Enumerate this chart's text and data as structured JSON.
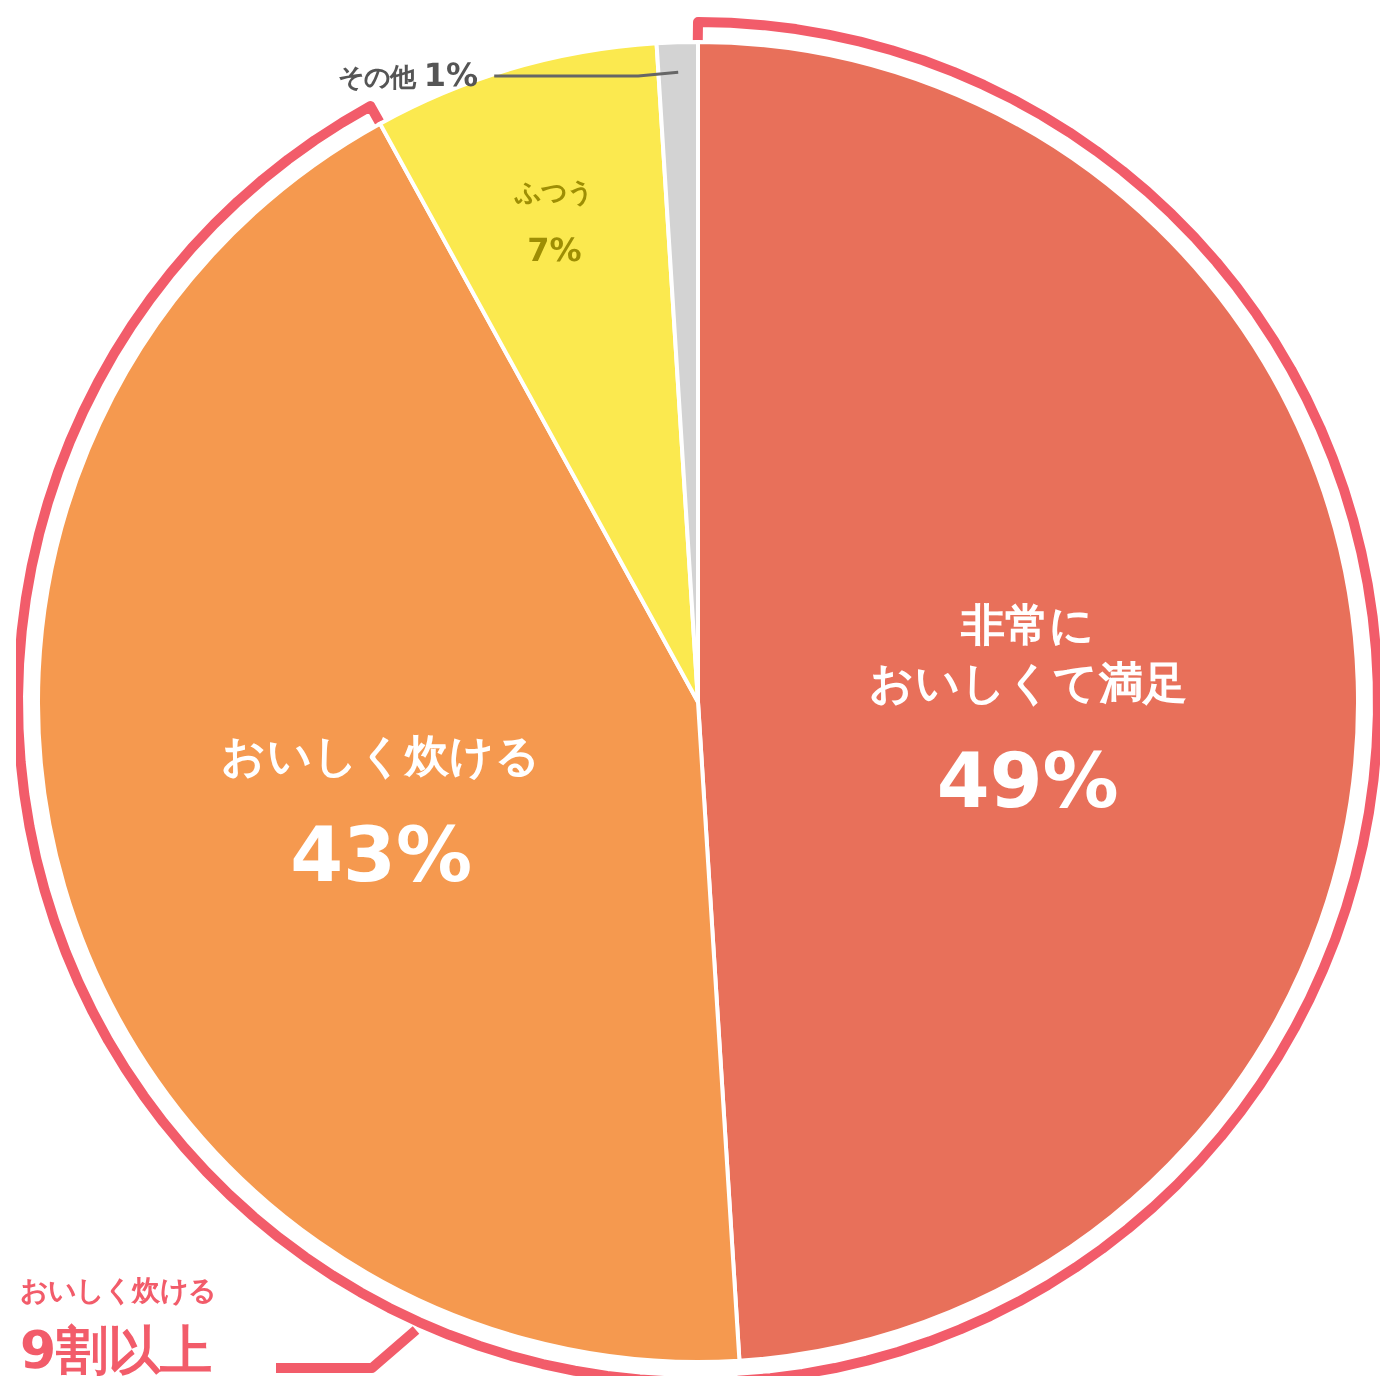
{
  "chart_data": {
    "type": "pie",
    "categories": [
      "非常においしくて満足",
      "おいしく炊ける",
      "ふつう",
      "その他"
    ],
    "values": [
      49,
      43,
      7,
      1
    ],
    "colors": [
      "#e8705a",
      "#f5994f",
      "#fbe94f",
      "#d3d3d3"
    ],
    "value_labels": [
      "49%",
      "43%",
      "7%",
      "1%"
    ],
    "annotations": [
      "おいしく炊ける",
      "9割以上"
    ]
  }
}
